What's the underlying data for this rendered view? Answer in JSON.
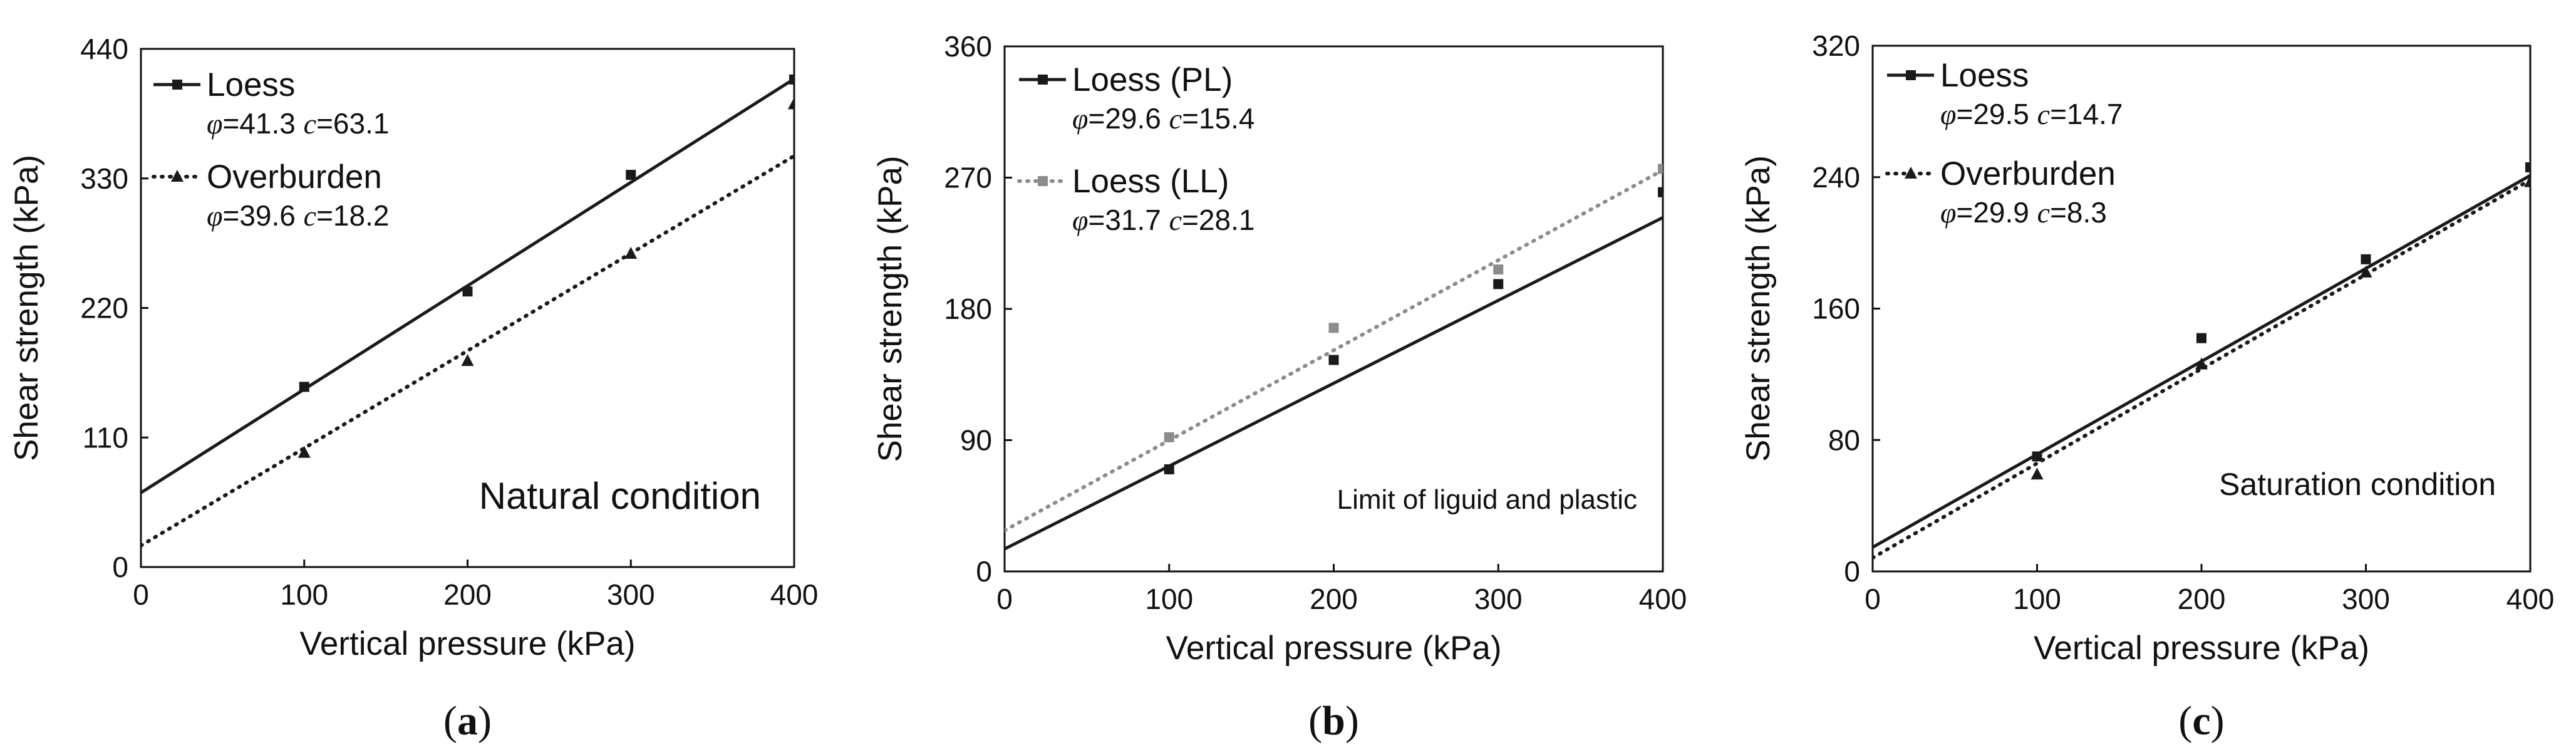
{
  "chart_data": [
    {
      "type": "scatter",
      "panel_label": "(a)",
      "panel_letter": "a",
      "condition": "Natural condition",
      "xlabel": "Vertical pressure (kPa)",
      "ylabel": "Shear strength (kPa)",
      "xlim": [
        0,
        400
      ],
      "ylim": [
        0,
        440
      ],
      "xticks": [
        0,
        100,
        200,
        300,
        400
      ],
      "yticks": [
        0,
        110,
        220,
        330,
        440
      ],
      "series": [
        {
          "name": "Loess",
          "marker": "square",
          "line": "solid",
          "color": "#1a1a1a",
          "param_text": "φ=41.3  c=63.1",
          "fit": {
            "phi": 41.3,
            "c": 63.1
          },
          "points": [
            [
              100,
              153
            ],
            [
              200,
              234
            ],
            [
              300,
              333
            ],
            [
              400,
              414
            ]
          ]
        },
        {
          "name": "Overburden",
          "marker": "triangle",
          "line": "dotted",
          "color": "#1a1a1a",
          "param_text": "φ=39.6  c=18.2",
          "fit": {
            "phi": 39.6,
            "c": 18.2
          },
          "points": [
            [
              100,
              97
            ],
            [
              200,
              175
            ],
            [
              300,
              266
            ],
            [
              400,
              393
            ]
          ]
        }
      ]
    },
    {
      "type": "scatter",
      "panel_label": "(b)",
      "panel_letter": "b",
      "condition": "Limit of liguid and plastic",
      "xlabel": "Vertical pressure (kPa)",
      "ylabel": "Shear strength (kPa)",
      "xlim": [
        0,
        400
      ],
      "ylim": [
        0,
        360
      ],
      "xticks": [
        0,
        100,
        200,
        300,
        400
      ],
      "yticks": [
        0,
        90,
        180,
        270,
        360
      ],
      "series": [
        {
          "name": "Loess (PL)",
          "marker": "square",
          "line": "solid",
          "color": "#1a1a1a",
          "param_text": "φ=29.6  c=15.4",
          "fit": {
            "phi": 29.6,
            "c": 15.4
          },
          "points": [
            [
              100,
              70
            ],
            [
              200,
              145
            ],
            [
              300,
              197
            ],
            [
              400,
              260
            ]
          ]
        },
        {
          "name": "Loess (LL)",
          "marker": "square",
          "line": "dotted",
          "color": "#8c8c8c",
          "param_text": "φ=31.7  c=28.1",
          "fit": {
            "phi": 31.7,
            "c": 28.1
          },
          "points": [
            [
              100,
              92
            ],
            [
              200,
              167
            ],
            [
              300,
              207
            ],
            [
              400,
              276
            ]
          ]
        }
      ]
    },
    {
      "type": "scatter",
      "panel_label": "(c)",
      "panel_letter": "c",
      "condition": "Saturation condition",
      "xlabel": "Vertical pressure (kPa)",
      "ylabel": "Shear strength (kPa)",
      "xlim": [
        0,
        400
      ],
      "ylim": [
        0,
        320
      ],
      "xticks": [
        0,
        100,
        200,
        300,
        400
      ],
      "yticks": [
        0,
        80,
        160,
        240,
        320
      ],
      "series": [
        {
          "name": "Loess",
          "marker": "square",
          "line": "solid",
          "color": "#1a1a1a",
          "param_text": "φ=29.5  c=14.7",
          "fit": {
            "phi": 29.5,
            "c": 14.7
          },
          "points": [
            [
              100,
              70
            ],
            [
              200,
              142
            ],
            [
              300,
              190
            ],
            [
              400,
              246
            ]
          ]
        },
        {
          "name": "Overburden",
          "marker": "triangle",
          "line": "dotted",
          "color": "#1a1a1a",
          "param_text": "φ=29.9  c=8.3",
          "fit": {
            "phi": 29.9,
            "c": 8.3
          },
          "points": [
            [
              100,
              59
            ],
            [
              200,
              126
            ],
            [
              300,
              182
            ],
            [
              400,
              237
            ]
          ]
        }
      ]
    }
  ]
}
